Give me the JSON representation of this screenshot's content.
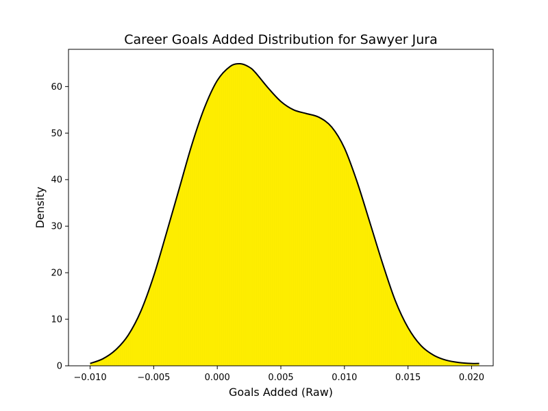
{
  "chart_data": {
    "type": "area",
    "title": "Career Goals Added Distribution for Sawyer Jura",
    "xlabel": "Goals Added (Raw)",
    "ylabel": "Density",
    "xlim": [
      -0.0117,
      0.0217
    ],
    "ylim": [
      0,
      68
    ],
    "xticks": [
      -0.01,
      -0.005,
      0.0,
      0.005,
      0.01,
      0.015,
      0.02
    ],
    "xtick_labels": [
      "−0.010",
      "−0.005",
      "0.000",
      "0.005",
      "0.010",
      "0.015",
      "0.020"
    ],
    "yticks": [
      0,
      10,
      20,
      30,
      40,
      50,
      60
    ],
    "ytick_labels": [
      "0",
      "10",
      "20",
      "30",
      "40",
      "50",
      "60"
    ],
    "grid": false,
    "legend": "none",
    "fill_color": "#ffee00",
    "fill_accent_color": "#f2e600",
    "line_color": "#000000",
    "series": [
      {
        "x": [
          -0.01,
          -0.009,
          -0.008,
          -0.007,
          -0.006,
          -0.005,
          -0.004,
          -0.003,
          -0.002,
          -0.001,
          0.0,
          0.001,
          0.0018,
          0.0025,
          0.003,
          0.004,
          0.005,
          0.006,
          0.007,
          0.008,
          0.009,
          0.01,
          0.011,
          0.012,
          0.013,
          0.014,
          0.015,
          0.016,
          0.017,
          0.018,
          0.019,
          0.02,
          0.0206
        ],
        "y": [
          0.5,
          1.5,
          3.4,
          6.6,
          11.8,
          19.3,
          28.5,
          38.0,
          47.5,
          55.5,
          61.3,
          64.3,
          64.9,
          64.2,
          63.0,
          59.7,
          56.8,
          55.0,
          54.2,
          53.4,
          51.3,
          46.8,
          39.5,
          30.8,
          22.0,
          14.0,
          8.2,
          4.4,
          2.3,
          1.2,
          0.7,
          0.5,
          0.5
        ]
      }
    ]
  }
}
